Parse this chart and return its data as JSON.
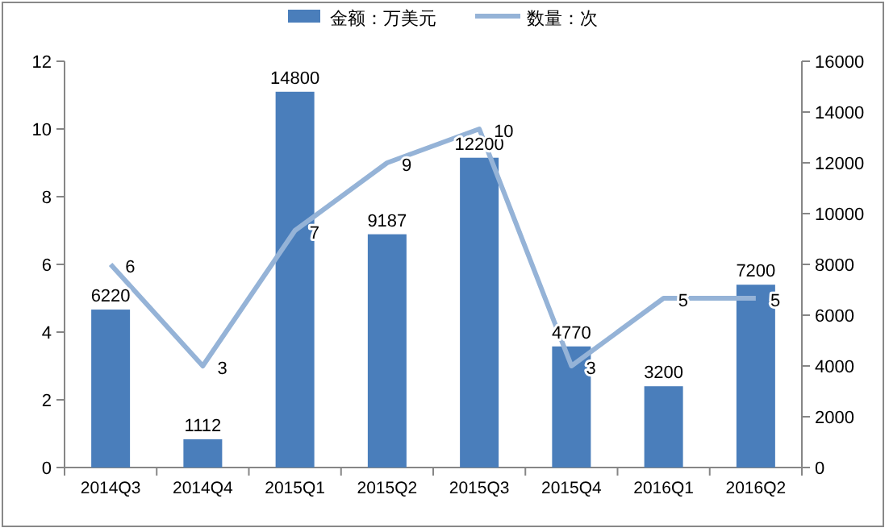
{
  "chart_data": {
    "type": "bar",
    "categories": [
      "2014Q3",
      "2014Q4",
      "2015Q1",
      "2015Q2",
      "2015Q3",
      "2015Q4",
      "2016Q1",
      "2016Q2"
    ],
    "series": [
      {
        "name": "金额：万美元",
        "axis": "y2",
        "color": "#4a7ebb",
        "values": [
          6220,
          1112,
          14800,
          9187,
          12200,
          4770,
          3200,
          7200
        ]
      },
      {
        "name": "数量：次",
        "type": "line",
        "axis": "y",
        "color": "#95b3d7",
        "values": [
          6,
          3,
          7,
          9,
          10,
          3,
          5,
          5
        ]
      }
    ],
    "ylim": [
      0,
      12
    ],
    "yticks": [
      0,
      2,
      4,
      6,
      8,
      10,
      12
    ],
    "y2lim": [
      0,
      16000
    ],
    "y2ticks": [
      0,
      2000,
      4000,
      6000,
      8000,
      10000,
      12000,
      14000,
      16000
    ],
    "legend": "top",
    "data_labels": true,
    "marker": "none",
    "line_style": "solid"
  }
}
